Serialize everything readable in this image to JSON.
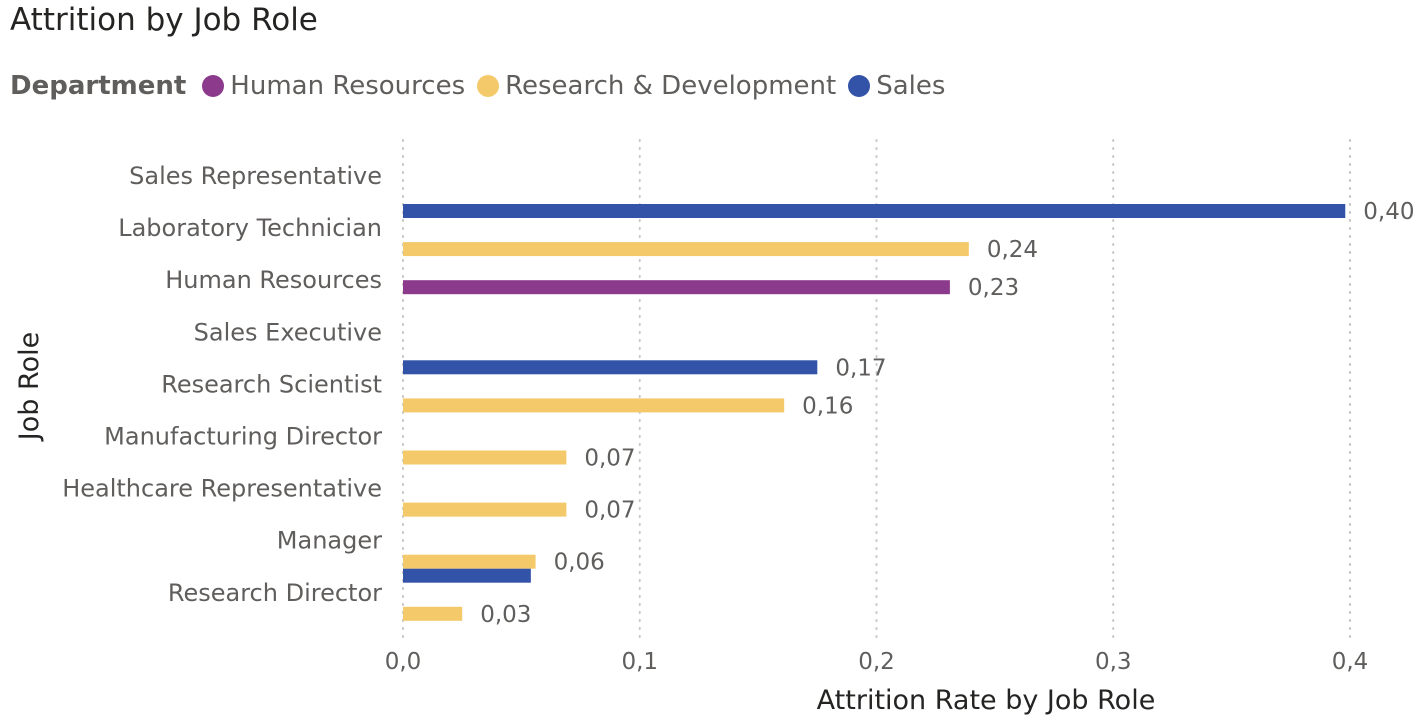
{
  "chart_data": {
    "type": "bar",
    "orientation": "horizontal",
    "title": "Attrition by Job Role",
    "xlabel": "Attrition Rate by Job Role",
    "ylabel": "Job Role",
    "xlim": [
      0,
      0.4
    ],
    "xticks": [
      "0,0",
      "0,1",
      "0,2",
      "0,3",
      "0,4"
    ],
    "grid": "vertical dotted",
    "legend": {
      "title": "Department",
      "position": "top-left",
      "entries": [
        {
          "name": "Human Resources",
          "color": "#8c3a8c"
        },
        {
          "name": "Research & Development",
          "color": "#f4c96a"
        },
        {
          "name": "Sales",
          "color": "#3353a8"
        }
      ]
    },
    "categories": [
      "Sales Representative",
      "Laboratory Technician",
      "Human Resources",
      "Sales Executive",
      "Research Scientist",
      "Manufacturing Director",
      "Healthcare Representative",
      "Manager",
      "Research Director"
    ],
    "series": [
      {
        "name": "Human Resources",
        "color": "#8c3a8c",
        "values": [
          null,
          null,
          0.231,
          null,
          null,
          null,
          null,
          null,
          null
        ]
      },
      {
        "name": "Research & Development",
        "color": "#f4c96a",
        "values": [
          null,
          0.239,
          null,
          null,
          0.161,
          0.069,
          0.069,
          0.056,
          0.025
        ]
      },
      {
        "name": "Sales",
        "color": "#3353a8",
        "values": [
          0.398,
          null,
          null,
          0.175,
          null,
          null,
          null,
          0.054,
          null
        ]
      }
    ],
    "data_labels": [
      "0,40",
      "0,24",
      "0,23",
      "0,17",
      "0,16",
      "0,07",
      "0,07",
      "0,06",
      "0,03"
    ]
  }
}
